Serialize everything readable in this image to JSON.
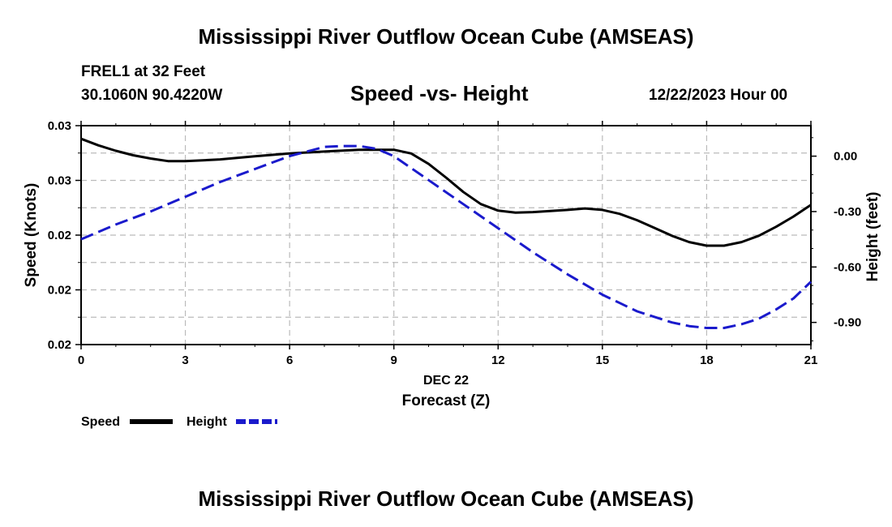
{
  "page": {
    "title": "Mississippi River Outflow Ocean Cube (AMSEAS)",
    "title_repeat": "Mississippi River Outflow Ocean Cube (AMSEAS)",
    "station_name": "FREL1 at 32 Feet",
    "station_coords": "30.1060N  90.4220W",
    "subtitle": "Speed -vs- Height",
    "datetime": "12/22/2023 Hour 00"
  },
  "chart_data": {
    "type": "line",
    "title": "Speed -vs- Height",
    "xlabel": "Forecast (Z)",
    "xlabel_date": "DEC 22",
    "x_ticks": [
      0,
      3,
      6,
      9,
      12,
      15,
      18,
      21
    ],
    "x_tick_labels": [
      "0",
      "3",
      "6",
      "9",
      "12",
      "15",
      "18",
      "21"
    ],
    "xlim": [
      0,
      21
    ],
    "ylabel_left": "Speed (Knots)",
    "ylim_left": [
      0.02,
      0.03
    ],
    "yticks_left": [
      0.02,
      0.0225,
      0.025,
      0.0275,
      0.03
    ],
    "ytick_labels_left": [
      "0.02",
      "0.02",
      "0.02",
      "0.03",
      "0.03"
    ],
    "ylabel_right": "Height (feet)",
    "ylim_right": [
      -1.02,
      0.165
    ],
    "yticks_right": [
      -0.9,
      -0.6,
      -0.3,
      0.0
    ],
    "ytick_labels_right": [
      "-0.90",
      "-0.60",
      "-0.30",
      "0.00"
    ],
    "grid": true,
    "legend_position": "bottom-left",
    "series": [
      {
        "name": "Speed",
        "axis": "left",
        "color": "#000000",
        "dash": "solid",
        "x": [
          0,
          0.5,
          1,
          1.5,
          2,
          2.5,
          3,
          3.5,
          4,
          5,
          6,
          7,
          8,
          8.5,
          9,
          9.5,
          10,
          10.5,
          11,
          11.5,
          12,
          12.5,
          13,
          14,
          14.5,
          15,
          15.5,
          16,
          16.5,
          17,
          17.5,
          18,
          18.5,
          19,
          19.5,
          20,
          20.5,
          21
        ],
        "values": [
          0.0294,
          0.0291,
          0.02885,
          0.02865,
          0.0285,
          0.02838,
          0.02838,
          0.02842,
          0.02846,
          0.0286,
          0.02873,
          0.02882,
          0.0289,
          0.0289,
          0.0289,
          0.02873,
          0.02825,
          0.02763,
          0.02697,
          0.02642,
          0.02612,
          0.02603,
          0.02605,
          0.02615,
          0.02622,
          0.02615,
          0.02597,
          0.02568,
          0.02533,
          0.02497,
          0.02468,
          0.02452,
          0.02452,
          0.02468,
          0.02497,
          0.02538,
          0.02585,
          0.02638
        ]
      },
      {
        "name": "Height",
        "axis": "right",
        "color": "#1a1acc",
        "dash": "dashed",
        "x": [
          0,
          1,
          2,
          3,
          4,
          5,
          6,
          7,
          7.5,
          8,
          8.5,
          9,
          10,
          11,
          12,
          13,
          14,
          15,
          16,
          17,
          17.5,
          18,
          18.5,
          19,
          19.5,
          20,
          20.5,
          21
        ],
        "values": [
          -0.45,
          -0.37,
          -0.3,
          -0.22,
          -0.14,
          -0.07,
          0.0,
          0.05,
          0.055,
          0.055,
          0.04,
          0.0,
          -0.13,
          -0.26,
          -0.39,
          -0.52,
          -0.64,
          -0.75,
          -0.84,
          -0.9,
          -0.92,
          -0.93,
          -0.93,
          -0.91,
          -0.88,
          -0.83,
          -0.77,
          -0.68
        ]
      }
    ]
  }
}
